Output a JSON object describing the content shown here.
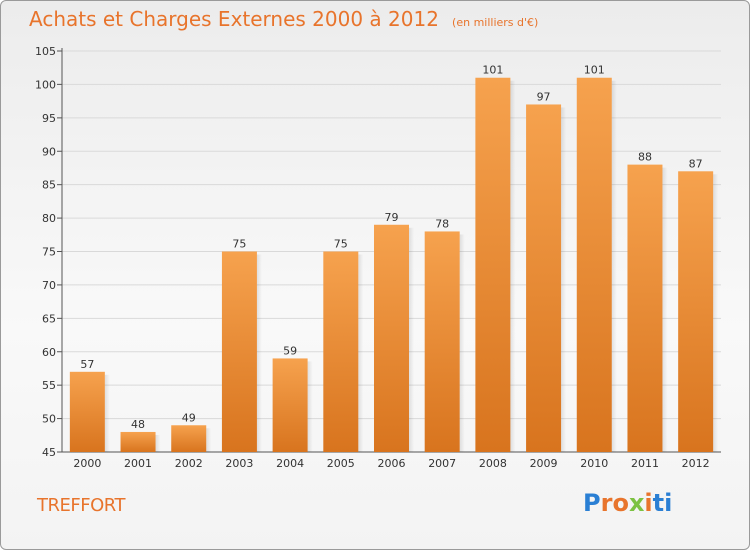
{
  "title": "Achats et Charges Externes 2000 à 2012",
  "unit": "(en milliers d'€)",
  "commune": "TREFFORT",
  "logo": {
    "letters": [
      "P",
      "r",
      "o",
      "x",
      "i",
      "t",
      "i"
    ],
    "colors": [
      "#2a7fd4",
      "#e8742c",
      "#e8742c",
      "#7cc242",
      "#e8742c",
      "#2a7fd4",
      "#2a7fd4"
    ]
  },
  "colors": {
    "bar_top": "#f6a24e",
    "bar_bottom": "#d8741e",
    "title": "#e8742c"
  },
  "chart_data": {
    "type": "bar",
    "title": "Achats et Charges Externes 2000 à 2012",
    "subtitle": "(en milliers d'€)",
    "categories": [
      "2000",
      "2001",
      "2002",
      "2003",
      "2004",
      "2005",
      "2006",
      "2007",
      "2008",
      "2009",
      "2010",
      "2011",
      "2012"
    ],
    "values": [
      57,
      48,
      49,
      75,
      59,
      75,
      79,
      78,
      101,
      97,
      101,
      88,
      87
    ],
    "ylim": [
      45,
      105
    ],
    "yticks": [
      "45",
      "50",
      "55",
      "60",
      "65",
      "70",
      "75",
      "80",
      "85",
      "90",
      "95",
      "100",
      "105"
    ],
    "grid": true,
    "legend": "none"
  }
}
